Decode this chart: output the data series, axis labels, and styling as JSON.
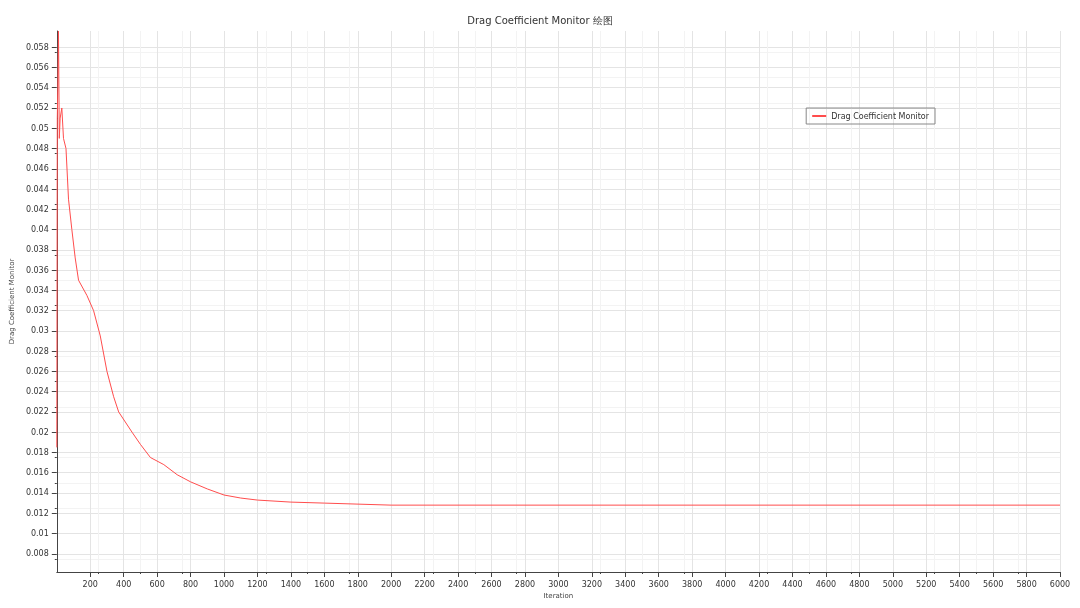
{
  "chart_data": {
    "type": "line",
    "title": "Drag Coefficient Monitor 绘图",
    "xlabel": "Iteration",
    "ylabel": "Drag Coefficient Monitor",
    "x": [
      0,
      3,
      6,
      10,
      15,
      20,
      30,
      40,
      55,
      70,
      90,
      110,
      130,
      180,
      220,
      260,
      300,
      340,
      370,
      450,
      500,
      560,
      640,
      720,
      800,
      900,
      1000,
      1100,
      1200,
      1400,
      1600,
      2000,
      6000
    ],
    "series": [
      {
        "name": "Drag Coefficient Monitor",
        "color": "#ff4d4d",
        "values": [
          0.0185,
          0.051,
          0.054,
          0.0596,
          0.049,
          0.051,
          0.052,
          0.049,
          0.048,
          0.043,
          0.04,
          0.0372,
          0.035,
          0.0335,
          0.032,
          0.0295,
          0.026,
          0.0235,
          0.022,
          0.02,
          0.0188,
          0.0175,
          0.0168,
          0.0158,
          0.0151,
          0.0144,
          0.0138,
          0.0135,
          0.0133,
          0.0131,
          0.013,
          0.0128,
          0.0128
        ]
      }
    ],
    "xlim": [
      0,
      6000
    ],
    "xticks": [
      200,
      400,
      600,
      800,
      1000,
      1200,
      1400,
      1600,
      1800,
      2000,
      2200,
      2400,
      2600,
      2800,
      3000,
      3200,
      3400,
      3600,
      3800,
      4000,
      4200,
      4400,
      4600,
      4800,
      5000,
      5200,
      5400,
      5600,
      5800,
      6000
    ],
    "ylim": [
      0.0062,
      0.0596
    ],
    "yticks": [
      0.008,
      0.01,
      0.012,
      0.014,
      0.016,
      0.018,
      0.02,
      0.022,
      0.024,
      0.026,
      0.028,
      0.03,
      0.032,
      0.034,
      0.036,
      0.038,
      0.04,
      0.042,
      0.044,
      0.046,
      0.048,
      0.05,
      0.052,
      0.054,
      0.056,
      0.058
    ],
    "grid": true,
    "legend": "top right",
    "marker": "none",
    "line_style": "solid"
  }
}
